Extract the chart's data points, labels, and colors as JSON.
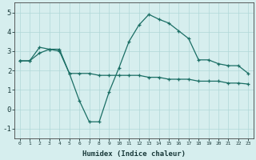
{
  "xlabel": "Humidex (Indice chaleur)",
  "bg_color": "#d6eeee",
  "line_color": "#1a6e64",
  "grid_color": "#b0d8d8",
  "xlim": [
    -0.5,
    23.5
  ],
  "ylim": [
    -1.5,
    5.5
  ],
  "yticks": [
    -1,
    0,
    1,
    2,
    3,
    4,
    5
  ],
  "xticks": [
    0,
    1,
    2,
    3,
    4,
    5,
    6,
    7,
    8,
    9,
    10,
    11,
    12,
    13,
    14,
    15,
    16,
    17,
    18,
    19,
    20,
    21,
    22,
    23
  ],
  "line1_x": [
    0,
    1,
    2,
    3,
    4,
    5,
    6,
    7,
    8,
    9,
    10,
    11,
    12,
    13,
    14,
    15,
    16,
    17,
    18,
    19,
    20,
    21,
    22,
    23
  ],
  "line1_y": [
    2.5,
    2.5,
    3.2,
    3.1,
    3.1,
    1.85,
    0.45,
    -0.65,
    -0.65,
    0.9,
    2.15,
    3.5,
    4.35,
    4.9,
    4.65,
    4.45,
    4.05,
    3.65,
    2.55,
    2.55,
    2.35,
    2.25,
    2.25,
    1.85
  ],
  "line2_x": [
    0,
    1,
    2,
    3,
    4,
    5,
    6,
    7,
    8,
    9,
    10,
    11,
    12,
    13,
    14,
    15,
    16,
    17,
    18,
    19,
    20,
    21,
    22,
    23
  ],
  "line2_y": [
    2.5,
    2.5,
    2.9,
    3.1,
    3.0,
    1.85,
    1.85,
    1.85,
    1.75,
    1.75,
    1.75,
    1.75,
    1.75,
    1.65,
    1.65,
    1.55,
    1.55,
    1.55,
    1.45,
    1.45,
    1.45,
    1.35,
    1.35,
    1.3
  ]
}
